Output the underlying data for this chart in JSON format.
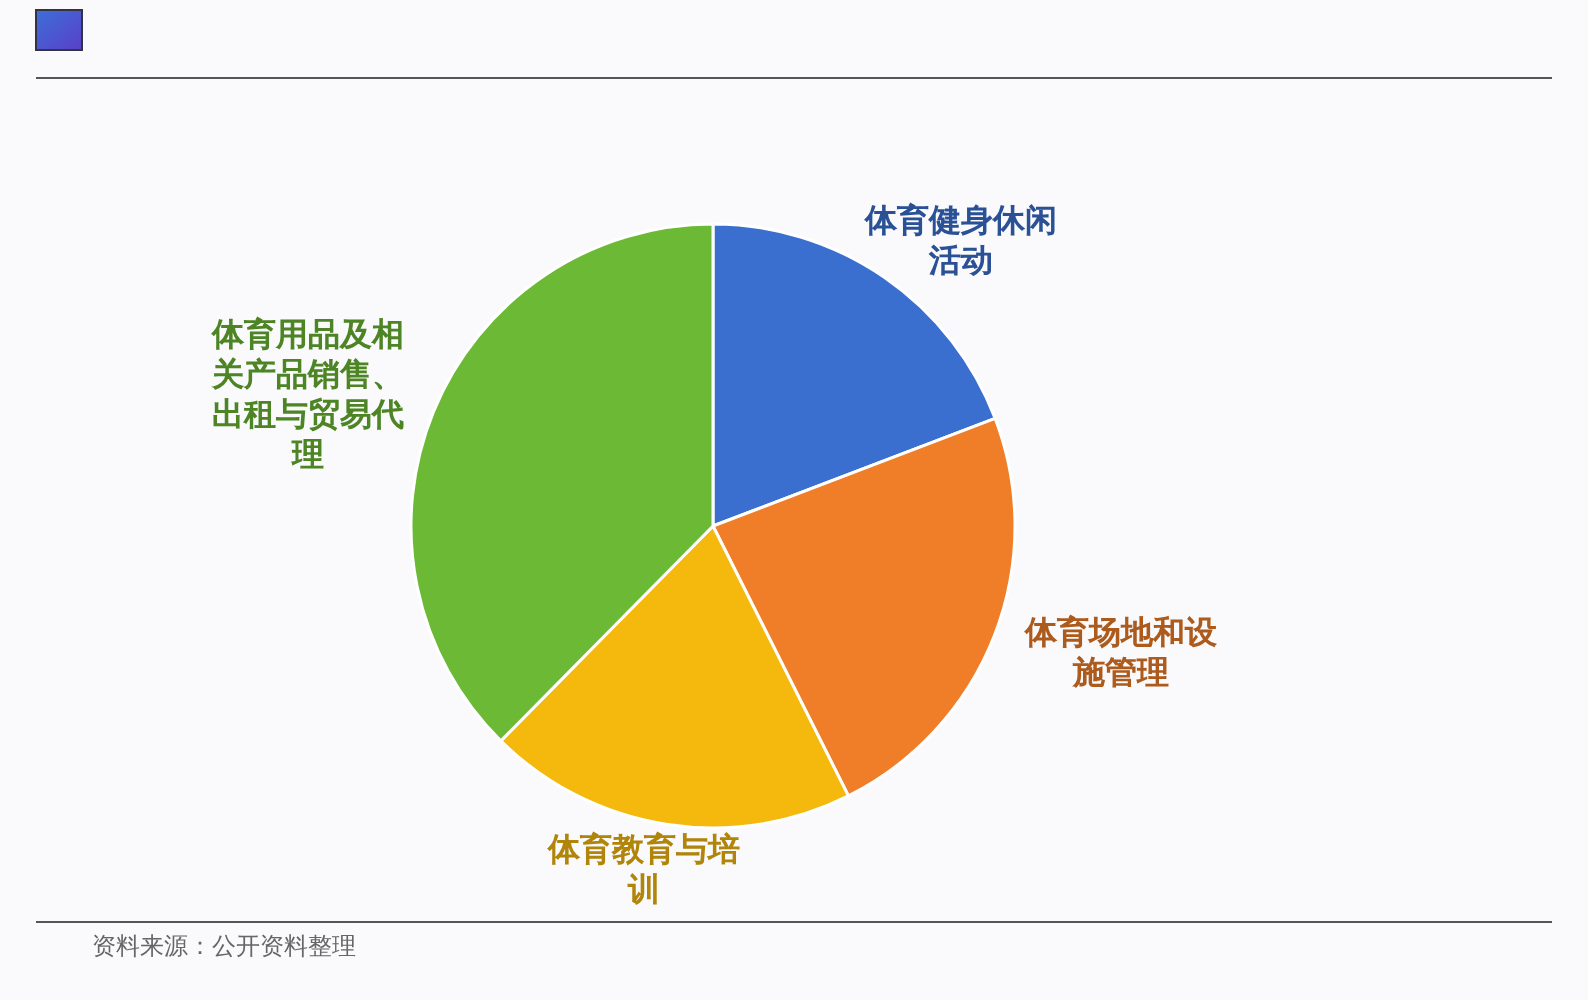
{
  "chart_data": {
    "type": "pie",
    "categories": [
      "体育健身休闲活动",
      "体育场地和设施管理",
      "体育教育与培训",
      "体育用品及相关产品销售、出租与贸易代理"
    ],
    "values": [
      19.2,
      23.4,
      19.8,
      37.6
    ],
    "colors": [
      "#3a6fd0",
      "#f07e28",
      "#f4b90c",
      "#6bb934"
    ],
    "annotations": [
      "资料来源：公开资料整理"
    ]
  }
}
